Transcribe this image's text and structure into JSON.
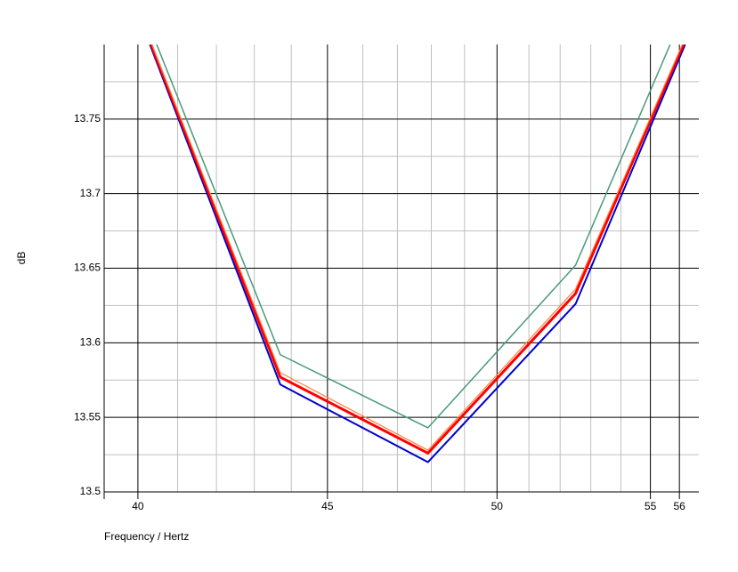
{
  "chart_data": {
    "type": "line",
    "x_label": "Frequency / Hertz",
    "y_label": "dB",
    "xscale": "log",
    "xlim": [
      39.17,
      56.68
    ],
    "xticks": [
      40,
      45,
      50,
      55,
      56
    ],
    "xminorticks": [
      41,
      42,
      43,
      44,
      46,
      47,
      48,
      49,
      51,
      52,
      53,
      54
    ],
    "ylim": [
      13.5,
      13.8
    ],
    "yticks": [
      13.5,
      13.55,
      13.6,
      13.65,
      13.7,
      13.75
    ],
    "yminorticks": [
      13.525,
      13.575,
      13.625,
      13.675,
      13.725,
      13.775
    ],
    "grid": true,
    "series": [
      {
        "color": "#0000cc",
        "width": 2,
        "x": [
          40.3,
          43.7,
          47.9,
          52.5,
          56.2
        ],
        "values": [
          13.8,
          13.572,
          13.52,
          13.626,
          13.8
        ]
      },
      {
        "color": "#ff0000",
        "width": 3,
        "x": [
          40.33,
          43.7,
          47.9,
          52.5,
          56.14
        ],
        "values": [
          13.8,
          13.577,
          13.526,
          13.633,
          13.8
        ]
      },
      {
        "color": "#ff8040",
        "width": 1.2,
        "x": [
          40.35,
          43.7,
          47.9,
          52.5,
          56.1
        ],
        "values": [
          13.8,
          13.58,
          13.528,
          13.636,
          13.8
        ]
      },
      {
        "color": "#4a9a7a",
        "width": 1.5,
        "x": [
          40.47,
          43.7,
          47.9,
          52.5,
          55.68
        ],
        "values": [
          13.8,
          13.592,
          13.543,
          13.652,
          13.8
        ]
      }
    ]
  }
}
